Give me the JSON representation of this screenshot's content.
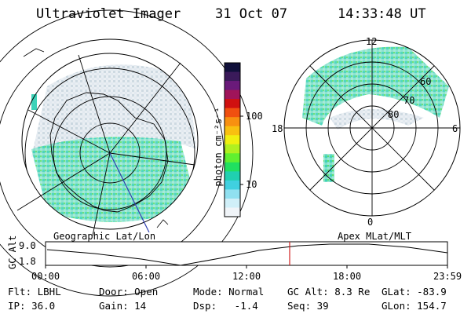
{
  "header": {
    "title": "Ultraviolet Imager",
    "date": "31 Oct 07",
    "time": "14:33:48 UT"
  },
  "colorbar": {
    "unit_label": "photon cm⁻²s⁻¹",
    "ticks": [
      "100",
      "10"
    ],
    "colors": [
      "#10103a",
      "#3a1a5a",
      "#6a1a7a",
      "#a0145a",
      "#d01010",
      "#f05010",
      "#f89010",
      "#f8c010",
      "#f0f010",
      "#b0f020",
      "#60f030",
      "#20e060",
      "#20d0b0",
      "#40d0e0",
      "#90e0f0",
      "#d0eff8",
      "#f0f4f8"
    ]
  },
  "left_panel": {
    "caption": "Geographic Lat/Lon"
  },
  "right_panel": {
    "caption": "Apex MLat/MLT",
    "lat_labels": [
      "80",
      "70",
      "60"
    ],
    "mlt_labels": {
      "top": "12",
      "left": "18",
      "right": "6",
      "bottom": "0"
    }
  },
  "altitude_plot": {
    "ylabel": "GC Alt",
    "y_ticks": [
      "9.0",
      "1.8"
    ],
    "x_ticks": [
      "00:00",
      "06:00",
      "12:00",
      "18:00",
      "23:59"
    ],
    "marker_time": "14:33",
    "line_color": "#000000",
    "marker_color": "#d02020"
  },
  "info": {
    "row1": [
      "Flt: LBHL",
      "Door: Open",
      "Mode: Normal",
      "GC Alt: 8.3 Re",
      "GLat: -83.9"
    ],
    "row2": [
      "IP: 36.0",
      "Gain: 14",
      "Dsp:   -1.4",
      "Seq: 39",
      "GLon: 154.7"
    ]
  }
}
